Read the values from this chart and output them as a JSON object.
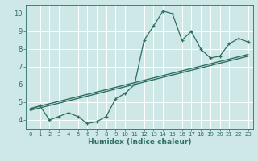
{
  "xlabel": "Humidex (Indice chaleur)",
  "background_color": "#cde8e6",
  "grid_color": "#b0d8d5",
  "line_color": "#2e6e65",
  "xlim": [
    -0.5,
    23.5
  ],
  "ylim": [
    3.5,
    10.5
  ],
  "x_ticks": [
    0,
    1,
    2,
    3,
    4,
    5,
    6,
    7,
    8,
    9,
    10,
    11,
    12,
    13,
    14,
    15,
    16,
    17,
    18,
    19,
    20,
    21,
    22,
    23
  ],
  "y_ticks": [
    4,
    5,
    6,
    7,
    8,
    9,
    10
  ],
  "curve_x": [
    0,
    1,
    2,
    3,
    4,
    5,
    6,
    7,
    8,
    9,
    10,
    11,
    12,
    13,
    14,
    15,
    16,
    17,
    18,
    19,
    20,
    21,
    22,
    23
  ],
  "curve_y": [
    4.6,
    4.8,
    4.0,
    4.2,
    4.4,
    4.2,
    3.8,
    3.9,
    4.2,
    5.2,
    5.5,
    6.0,
    8.5,
    9.3,
    10.15,
    10.0,
    8.5,
    9.0,
    8.0,
    7.5,
    7.6,
    8.3,
    8.6,
    8.4
  ],
  "line1_x": [
    0,
    23
  ],
  "line1_y": [
    4.55,
    7.6
  ],
  "line2_x": [
    0,
    23
  ],
  "line2_y": [
    4.65,
    7.7
  ]
}
